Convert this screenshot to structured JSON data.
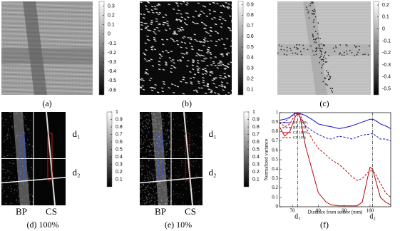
{
  "chart_data": [
    {
      "type": "image",
      "label": "(a)",
      "colorbar_lim": [
        -0.65,
        0.35
      ],
      "colorbar_ticks": [
        0.3,
        0.2,
        0.1,
        0,
        -0.1,
        -0.2,
        -0.3,
        -0.4,
        -0.5,
        -0.6
      ]
    },
    {
      "type": "image",
      "label": "(b)",
      "colorbar_lim": [
        0.05,
        0.93
      ],
      "colorbar_ticks": [
        0.9,
        0.8,
        0.7,
        0.6,
        0.5,
        0.4,
        0.3,
        0.2,
        0.1
      ]
    },
    {
      "type": "image",
      "label": "(c)",
      "colorbar_lim": [
        -0.55,
        0.23
      ],
      "colorbar_ticks": [
        0.2,
        0.1,
        0,
        -0.1,
        -0.2,
        -0.3,
        -0.4,
        -0.5
      ]
    },
    {
      "type": "image",
      "label": "(d) 100%",
      "sublabels": [
        "BP",
        "CS"
      ],
      "markers": [
        "d₁",
        "d₂"
      ],
      "colorbar_lim": [
        0,
        1
      ],
      "colorbar_ticks": [
        1,
        0.9,
        0.8,
        0.7,
        0.6,
        0.5,
        0.4,
        0.3,
        0.2,
        0.1
      ]
    },
    {
      "type": "image",
      "label": "(e) 10%",
      "sublabels": [
        "BP",
        "CS"
      ],
      "markers": [
        "d₁",
        "d₂"
      ],
      "colorbar_lim": [
        0,
        1
      ],
      "colorbar_ticks": [
        1,
        0.9,
        0.8,
        0.7,
        0.6,
        0.5,
        0.4,
        0.3,
        0.2,
        0.1
      ]
    },
    {
      "type": "line",
      "label": "(f)",
      "x_label": "Distance from sensor (mm)",
      "y_label": "Normalized variance",
      "xlim": [
        65,
        108
      ],
      "ylim": [
        0,
        1
      ],
      "xticks": [
        70,
        80,
        90,
        100
      ],
      "yticks": [
        0,
        0.1,
        0.2,
        0.3,
        0.4,
        0.5,
        0.6,
        0.7,
        0.8,
        0.9,
        1
      ],
      "x": [
        65,
        67,
        69,
        71,
        72,
        73,
        75,
        78,
        80,
        83,
        85,
        88,
        90,
        93,
        95,
        97,
        99,
        100,
        101,
        102,
        104,
        106,
        108
      ],
      "series": [
        {
          "name": "BP 100%",
          "color": "#1010c0",
          "dashed": false,
          "values": [
            0.92,
            0.93,
            0.95,
            0.99,
            1.0,
            0.99,
            0.97,
            0.92,
            0.88,
            0.86,
            0.85,
            0.83,
            0.84,
            0.86,
            0.88,
            0.9,
            0.92,
            0.93,
            0.93,
            0.92,
            0.88,
            0.86,
            0.83
          ]
        },
        {
          "name": "BP 10%",
          "color": "#1010c0",
          "dashed": true,
          "values": [
            0.88,
            0.9,
            0.95,
            1.0,
            0.98,
            0.95,
            0.86,
            0.8,
            0.77,
            0.73,
            0.72,
            0.75,
            0.74,
            0.72,
            0.74,
            0.76,
            0.77,
            0.77,
            0.78,
            0.76,
            0.72,
            0.72,
            0.7
          ]
        },
        {
          "name": "CS 100%",
          "color": "#c00000",
          "dashed": false,
          "values": [
            0.85,
            0.75,
            0.8,
            0.95,
            1.0,
            0.95,
            0.65,
            0.35,
            0.15,
            0.05,
            0.02,
            0.01,
            0.01,
            0.01,
            0.01,
            0.05,
            0.3,
            0.42,
            0.4,
            0.3,
            0.1,
            0.05,
            0.02
          ]
        },
        {
          "name": "CS 10%",
          "color": "#c00000",
          "dashed": true,
          "values": [
            0.9,
            0.85,
            0.88,
            0.98,
            1.0,
            0.98,
            0.85,
            0.7,
            0.62,
            0.55,
            0.5,
            0.45,
            0.4,
            0.32,
            0.28,
            0.3,
            0.36,
            0.38,
            0.38,
            0.35,
            0.25,
            0.15,
            0.1
          ]
        }
      ],
      "vlines": [
        {
          "x": 72,
          "label": "d₁"
        },
        {
          "x": 101,
          "label": "d₂"
        }
      ]
    }
  ]
}
